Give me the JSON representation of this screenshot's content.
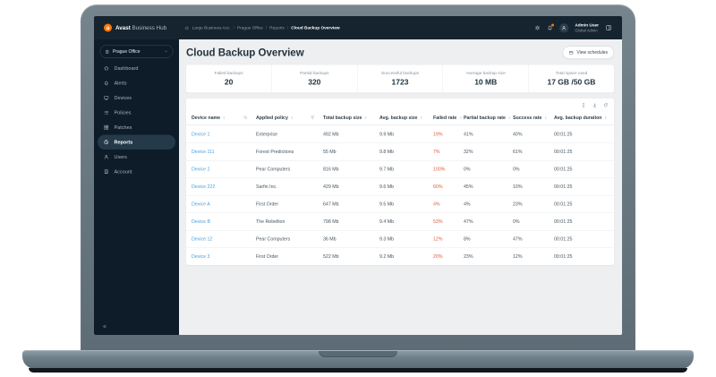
{
  "brand": {
    "logo_letter": "a",
    "name": "Avast",
    "suffix": " Business Hub"
  },
  "breadcrumb": {
    "items": [
      "Large Business Acc.",
      "Prague Office",
      "Reports",
      "Cloud Backup Overview"
    ]
  },
  "topbar": {
    "user_name": "Admin User",
    "user_role": "Global Admin"
  },
  "sidebar": {
    "org_selector": "Prague Office",
    "collapse_glyph": "«",
    "items": [
      {
        "label": "Dashboard",
        "icon": "dashboard-icon",
        "active": false
      },
      {
        "label": "Alerts",
        "icon": "alerts-icon",
        "active": false
      },
      {
        "label": "Devices",
        "icon": "devices-icon",
        "active": false
      },
      {
        "label": "Policies",
        "icon": "policies-icon",
        "active": false
      },
      {
        "label": "Patches",
        "icon": "patches-icon",
        "active": false
      },
      {
        "label": "Reports",
        "icon": "reports-icon",
        "active": true
      },
      {
        "label": "Users",
        "icon": "users-icon",
        "active": false
      },
      {
        "label": "Account",
        "icon": "account-icon",
        "active": false
      }
    ]
  },
  "page": {
    "title": "Cloud Backup Overview",
    "view_schedules": "View schedules"
  },
  "stats": [
    {
      "label": "Failed backups",
      "value": "20"
    },
    {
      "label": "Partial backups",
      "value": "320"
    },
    {
      "label": "Successful backups",
      "value": "1723"
    },
    {
      "label": "Average backup size",
      "value": "10 MB"
    },
    {
      "label": "Total space used",
      "value": "17 GB /50 GB"
    }
  ],
  "table": {
    "columns": [
      {
        "label": "Device name",
        "extra_icon": "search-icon"
      },
      {
        "label": "Applied policy",
        "extra_icon": "filter-icon"
      },
      {
        "label": "Total backup size"
      },
      {
        "label": "Avg. backup size"
      },
      {
        "label": "Failed rate"
      },
      {
        "label": "Partial backup rate"
      },
      {
        "label": "Success rate"
      },
      {
        "label": "Avg. backup duration"
      }
    ],
    "rows": [
      {
        "cells": [
          "Device 1",
          "Enterprise",
          "492 Mb",
          "9.9 Mb",
          "19%",
          "41%",
          "40%",
          "00:01:25"
        ]
      },
      {
        "cells": [
          "Device 111",
          "Forest Predictions",
          "55 Mb",
          "9.8 Mb",
          "7%",
          "32%",
          "61%",
          "00:01:25"
        ]
      },
      {
        "cells": [
          "Device 2",
          "Pear Computers",
          "816 Mb",
          "9.7 Mb",
          "100%",
          "0%",
          "0%",
          "00:01:25"
        ]
      },
      {
        "cells": [
          "Device 222",
          "Sarfin Inc.",
          "429 Mb",
          "9.6 Mb",
          "60%",
          "45%",
          "10%",
          "00:01:25"
        ]
      },
      {
        "cells": [
          "Device A",
          "First Order",
          "647 Mb",
          "9.5 Mb",
          "4%",
          "4%",
          "23%",
          "00:01:25"
        ]
      },
      {
        "cells": [
          "Device B",
          "The Rebellion",
          "798 Mb",
          "9.4 Mb",
          "53%",
          "47%",
          "0%",
          "00:01:25"
        ]
      },
      {
        "cells": [
          "Device 12",
          "Pear Computers",
          "36 Mb",
          "9.3 Mb",
          "12%",
          "8%",
          "47%",
          "00:01:25"
        ]
      },
      {
        "cells": [
          "Device 3",
          "First Order",
          "522 Mb",
          "9.2 Mb",
          "20%",
          "23%",
          "12%",
          "00:01:25"
        ]
      }
    ]
  },
  "colors": {
    "accent_orange": "#ff7800",
    "link_blue": "#4aa0dc",
    "failed_red": "#e05a3a",
    "dark_navy": "#0d1c28",
    "topbar_navy": "#15242f",
    "main_bg": "#edeff0"
  }
}
